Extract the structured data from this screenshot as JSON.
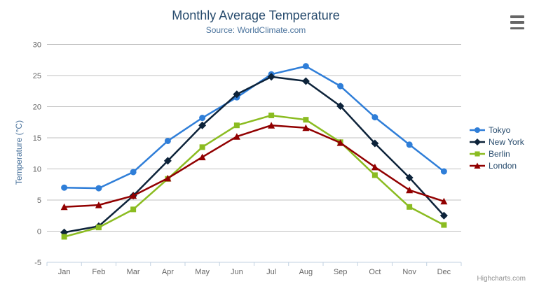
{
  "credit": "Highcharts.com",
  "icons": {
    "export_menu": "hamburger-menu-icon"
  },
  "colors": {
    "title_text": "#274b6d",
    "subtitle_text": "#4d759e",
    "axis_label_text": "#666666",
    "axis_title_text": "#4d759e",
    "legend_text": "#274b6d",
    "grid_line": "#c0c0c0",
    "axis_line": "#c0d0e0",
    "credit_text": "#909090"
  },
  "chart_data": {
    "type": "line",
    "title": "Monthly Average Temperature",
    "subtitle": "Source: WorldClimate.com",
    "categories": [
      "Jan",
      "Feb",
      "Mar",
      "Apr",
      "May",
      "Jun",
      "Jul",
      "Aug",
      "Sep",
      "Oct",
      "Nov",
      "Dec"
    ],
    "series": [
      {
        "name": "Tokyo",
        "color": "#2f7ed8",
        "symbol": "circle",
        "values": [
          7.0,
          6.9,
          9.5,
          14.5,
          18.2,
          21.5,
          25.2,
          26.5,
          23.3,
          18.3,
          13.9,
          9.6
        ]
      },
      {
        "name": "New York",
        "color": "#0d233a",
        "symbol": "diamond",
        "values": [
          -0.2,
          0.8,
          5.7,
          11.3,
          17.0,
          22.0,
          24.8,
          24.1,
          20.1,
          14.1,
          8.6,
          2.5
        ]
      },
      {
        "name": "Berlin",
        "color": "#8bbc21",
        "symbol": "square",
        "values": [
          -0.9,
          0.6,
          3.5,
          8.4,
          13.5,
          17.0,
          18.6,
          17.9,
          14.3,
          9.0,
          3.9,
          1.0
        ]
      },
      {
        "name": "London",
        "color": "#910000",
        "symbol": "triangle-up",
        "values": [
          3.9,
          4.2,
          5.7,
          8.5,
          11.9,
          15.2,
          17.0,
          16.6,
          14.2,
          10.3,
          6.6,
          4.8
        ]
      }
    ],
    "xlabel": "",
    "ylabel": "Temperature (°C)",
    "ylim": [
      -5,
      30
    ],
    "yticks": [
      -5,
      0,
      5,
      10,
      15,
      20,
      25,
      30
    ],
    "grid": true,
    "legend_position": "right-vertical"
  }
}
